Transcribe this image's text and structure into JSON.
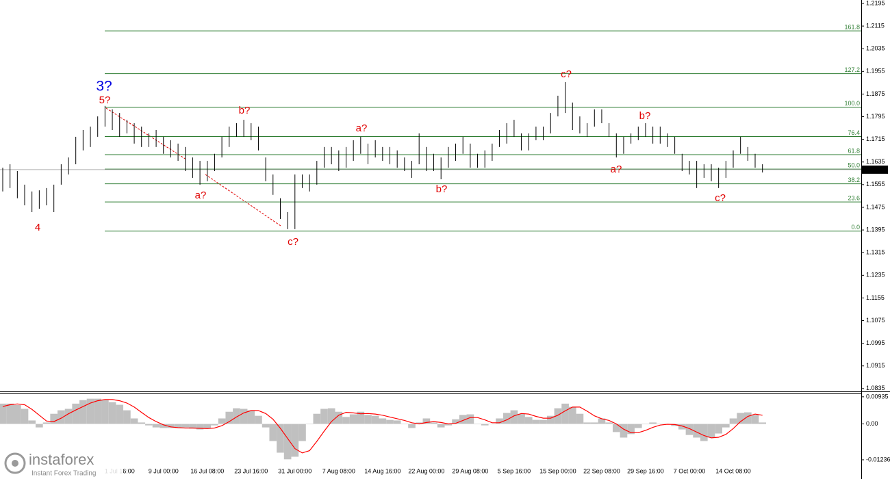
{
  "chart_data": [
    {
      "type": "hilo",
      "color": "#000000",
      "categories": [
        null,
        null,
        null,
        null,
        null,
        null,
        null,
        null,
        null,
        null,
        null,
        null,
        null,
        null,
        null,
        null,
        "1 Jul 16:00",
        null,
        null,
        null,
        null,
        null,
        "9 Jul 00:00",
        null,
        null,
        null,
        null,
        null,
        "16 Jul 08:00",
        null,
        null,
        null,
        null,
        null,
        "23 Jul 16:00",
        null,
        null,
        null,
        null,
        null,
        "31 Jul 00:00",
        null,
        null,
        null,
        null,
        null,
        "7 Aug 08:00",
        null,
        null,
        null,
        null,
        null,
        "14 Aug 16:00",
        null,
        null,
        null,
        null,
        null,
        "22 Aug 00:00",
        null,
        null,
        null,
        null,
        null,
        "29 Aug 08:00",
        null,
        null,
        null,
        null,
        null,
        "5 Sep 16:00",
        null,
        null,
        null,
        null,
        null,
        "15 Sep 00:00",
        null,
        null,
        null,
        null,
        null,
        "22 Sep 08:00",
        null,
        null,
        null,
        null,
        null,
        "29 Sep 16:00",
        null,
        null,
        null,
        null,
        null,
        "7 Oct 00:00",
        null,
        null,
        null,
        null,
        null,
        "14 Oct 08:00",
        null,
        null,
        null,
        null
      ],
      "high": [
        1.1615,
        1.1627,
        1.1603,
        1.1555,
        1.1531,
        1.1535,
        1.1543,
        1.1555,
        1.1627,
        1.1651,
        1.1724,
        1.1748,
        1.176,
        1.1796,
        1.1833,
        1.1821,
        1.1808,
        1.1784,
        1.1772,
        1.176,
        1.1736,
        1.1748,
        1.1724,
        1.1712,
        1.17,
        1.1688,
        1.1651,
        1.1639,
        1.1639,
        1.1664,
        1.1724,
        1.176,
        1.1772,
        1.1784,
        1.1772,
        1.176,
        1.1651,
        1.1591,
        1.1507,
        1.1458,
        1.1591,
        1.1591,
        1.1591,
        1.1639,
        1.1688,
        1.1688,
        1.1676,
        1.1688,
        1.1712,
        1.1724,
        1.17,
        1.1712,
        1.1688,
        1.1688,
        1.1676,
        1.1651,
        1.1639,
        1.1736,
        1.1688,
        1.1664,
        1.1651,
        1.1688,
        1.17,
        1.1724,
        1.17,
        1.1664,
        1.1676,
        1.17,
        1.1748,
        1.1772,
        1.1784,
        1.1736,
        1.1736,
        1.176,
        1.176,
        1.1808,
        1.1869,
        1.1917,
        1.1845,
        1.1796,
        1.1772,
        1.1821,
        1.1821,
        1.1772,
        1.1736,
        1.1724,
        1.1736,
        1.176,
        1.1772,
        1.176,
        1.176,
        1.1736,
        1.1724,
        1.1664,
        1.1639,
        1.1639,
        1.1627,
        1.1627,
        1.1615,
        1.1639,
        1.1676,
        1.1724,
        1.1688,
        1.1664,
        1.1627
      ],
      "low": [
        1.1531,
        1.1543,
        1.1507,
        1.1482,
        1.1458,
        1.147,
        1.1482,
        1.1458,
        1.1555,
        1.1591,
        1.1627,
        1.1676,
        1.1688,
        1.1724,
        1.176,
        1.1748,
        1.1724,
        1.1736,
        1.17,
        1.1688,
        1.1688,
        1.1688,
        1.1664,
        1.1651,
        1.1639,
        1.1603,
        1.1579,
        1.1555,
        1.1567,
        1.1603,
        1.1651,
        1.1688,
        1.1724,
        1.1724,
        1.1712,
        1.1676,
        1.1567,
        1.1519,
        1.1434,
        1.1398,
        1.1398,
        1.1543,
        1.1531,
        1.1555,
        1.1615,
        1.1627,
        1.1603,
        1.1615,
        1.1639,
        1.1664,
        1.1627,
        1.1651,
        1.1639,
        1.1627,
        1.1615,
        1.1603,
        1.1579,
        1.1627,
        1.1603,
        1.1603,
        1.1574,
        1.1615,
        1.1639,
        1.1664,
        1.1615,
        1.1615,
        1.1615,
        1.1639,
        1.1688,
        1.17,
        1.1724,
        1.1676,
        1.1676,
        1.1712,
        1.1712,
        1.1736,
        1.1796,
        1.1808,
        1.1748,
        1.1736,
        1.1724,
        1.176,
        1.1772,
        1.1724,
        1.1651,
        1.1664,
        1.17,
        1.1712,
        1.1724,
        1.17,
        1.17,
        1.1688,
        1.1664,
        1.1603,
        1.1591,
        1.1543,
        1.1579,
        1.1567,
        1.1543,
        1.1579,
        1.1615,
        1.1664,
        1.1639,
        1.1615,
        1.1598
      ],
      "ylim": [
        1.0825,
        1.2207
      ],
      "yticks": [
        1.2195,
        1.2115,
        1.2035,
        1.1955,
        1.1875,
        1.1795,
        1.1715,
        1.1635,
        1.1555,
        1.1475,
        1.1395,
        1.1315,
        1.1235,
        1.1155,
        1.1075,
        1.0995,
        1.0915,
        1.0835
      ],
      "last_price": 1.1608,
      "fib_color": "#2e7d32",
      "fib_levels": [
        {
          "label": "161.8",
          "value": 1.2098
        },
        {
          "label": "127.2",
          "value": 1.1947
        },
        {
          "label": "100.0",
          "value": 1.1828
        },
        {
          "label": "76.4",
          "value": 1.1725
        },
        {
          "label": "61.8",
          "value": 1.1661
        },
        {
          "label": "50.0",
          "value": 1.161
        },
        {
          "label": "38.2",
          "value": 1.1558
        },
        {
          "label": "23.6",
          "value": 1.1494
        },
        {
          "label": "0.0",
          "value": 1.1391
        }
      ],
      "annotations": [
        "3?",
        "5?",
        "4",
        "a?",
        "b?",
        "c?",
        "a?",
        "b?",
        "c?",
        "a?",
        "b?",
        "c?"
      ]
    },
    {
      "type": "macd",
      "color": "#c0c0c0",
      "signal_color": "#ff0000",
      "values": [
        0.007,
        0.007,
        0.0065,
        0.0052,
        0.0012,
        -0.0012,
        0.0005,
        0.0035,
        0.0047,
        0.0052,
        0.007,
        0.0082,
        0.0087,
        0.0087,
        0.0082,
        0.0075,
        0.0066,
        0.0047,
        0.0019,
        0.0005,
        -0.0005,
        -0.0012,
        -0.0014,
        -0.0014,
        -0.0014,
        -0.0012,
        -0.0016,
        -0.0019,
        -0.0016,
        -0.0005,
        0.0019,
        0.0042,
        0.0054,
        0.0052,
        0.0047,
        0.0028,
        -0.0012,
        -0.0059,
        -0.0099,
        -0.0122,
        -0.0113,
        -0.0059,
        0.0,
        0.0035,
        0.0052,
        0.0054,
        0.0042,
        0.0024,
        0.0033,
        0.0042,
        0.0031,
        0.0028,
        0.0019,
        0.0014,
        0.0012,
        0.0,
        -0.0014,
        0.0005,
        0.0019,
        0.0005,
        -0.0012,
        -0.0005,
        0.0016,
        0.0031,
        0.0033,
        0.0,
        -0.0005,
        0.0,
        0.0019,
        0.0038,
        0.0047,
        0.0035,
        0.0024,
        0.0014,
        0.0014,
        0.0028,
        0.0054,
        0.007,
        0.0059,
        0.0035,
        0.0005,
        0.0005,
        0.0019,
        0.0005,
        -0.0028,
        -0.0047,
        -0.0035,
        -0.0014,
        0.0,
        0.0005,
        0.0,
        -0.0002,
        -0.0007,
        -0.0019,
        -0.0038,
        -0.0047,
        -0.0059,
        -0.0047,
        -0.0033,
        -0.0012,
        0.0019,
        0.0038,
        0.004,
        0.0031,
        0.0005
      ],
      "signal": [
        0.006,
        0.0066,
        0.0069,
        0.0066,
        0.005,
        0.003,
        0.001,
        0.0008,
        0.002,
        0.0035,
        0.0048,
        0.006,
        0.0072,
        0.008,
        0.0084,
        0.0084,
        0.008,
        0.0072,
        0.0058,
        0.004,
        0.0022,
        0.0008,
        -0.0003,
        -0.001,
        -0.0013,
        -0.0014,
        -0.0014,
        -0.0015,
        -0.0016,
        -0.0014,
        -0.0006,
        0.0008,
        0.0024,
        0.0038,
        0.0046,
        0.0046,
        0.0036,
        0.0016,
        -0.0015,
        -0.005,
        -0.0085,
        -0.01,
        -0.0092,
        -0.006,
        -0.0025,
        0.0008,
        0.003,
        0.004,
        0.0038,
        0.0035,
        0.0036,
        0.0034,
        0.003,
        0.0024,
        0.0018,
        0.0012,
        0.0004,
        0.0,
        0.0005,
        0.0008,
        0.0005,
        0.0,
        0.0002,
        0.0012,
        0.0022,
        0.0022,
        0.0014,
        0.0004,
        0.0004,
        0.0014,
        0.0028,
        0.0036,
        0.0034,
        0.0026,
        0.002,
        0.002,
        0.003,
        0.0045,
        0.0058,
        0.0058,
        0.0044,
        0.0028,
        0.0018,
        0.0012,
        0.0,
        -0.0018,
        -0.003,
        -0.003,
        -0.0022,
        -0.0012,
        -0.0004,
        -0.0001,
        -0.0002,
        -0.0007,
        -0.0016,
        -0.0028,
        -0.004,
        -0.0048,
        -0.0046,
        -0.0036,
        -0.0016,
        0.0008,
        0.0026,
        0.0034,
        0.003
      ],
      "ylim": [
        -0.0185,
        0.0105
      ],
      "yticks": [
        0.00935,
        {
          "value": 0,
          "label": "0.00"
        },
        -0.01236
      ]
    }
  ],
  "branding": {
    "name": "instaforex",
    "tagline": "Instant Forex Trading"
  }
}
